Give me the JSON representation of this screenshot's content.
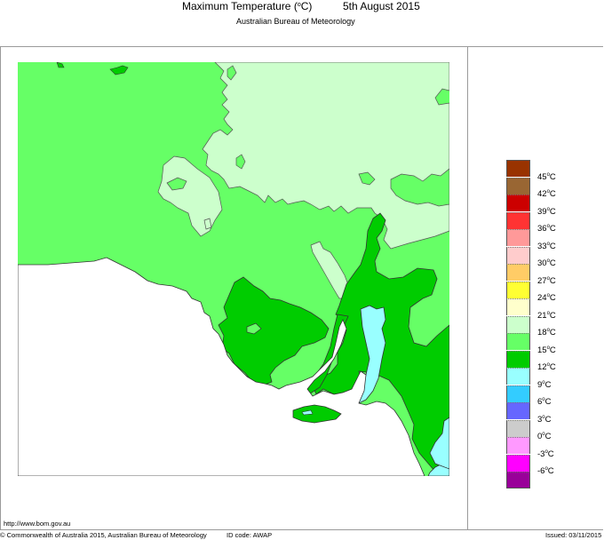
{
  "header": {
    "title": "Maximum Temperature (",
    "title_unit_sup": "o",
    "title_unit_suffix": "C)",
    "date": "5th August 2015",
    "subtitle": "Australian Bureau of Meteorology"
  },
  "map": {
    "region": "South Australia",
    "variable": "Maximum Temperature",
    "colors": {
      "t18_21": "#ccffcc",
      "t15_18": "#66ff66",
      "t12_15": "#00cc00",
      "t9_12": "#99ffff",
      "ocean": "#ffffff",
      "outline": "#333333"
    }
  },
  "legend": {
    "items": [
      {
        "label": "45",
        "color": "#993300"
      },
      {
        "label": "42",
        "color": "#996633"
      },
      {
        "label": "39",
        "color": "#cc0000"
      },
      {
        "label": "36",
        "color": "#ff3333"
      },
      {
        "label": "33",
        "color": "#ff9999"
      },
      {
        "label": "30",
        "color": "#ffcccc"
      },
      {
        "label": "27",
        "color": "#ffcc66"
      },
      {
        "label": "24",
        "color": "#ffff33"
      },
      {
        "label": "21",
        "color": "#ffffcc"
      },
      {
        "label": "18",
        "color": "#ccffcc"
      },
      {
        "label": "15",
        "color": "#66ff66"
      },
      {
        "label": "12",
        "color": "#00cc00"
      },
      {
        "label": "9",
        "color": "#99ffff"
      },
      {
        "label": "6",
        "color": "#33ccff"
      },
      {
        "label": "3",
        "color": "#6666ff"
      },
      {
        "label": "0",
        "color": "#cccccc"
      },
      {
        "label": "-3",
        "color": "#ff99ff"
      },
      {
        "label": "-6",
        "color": "#ff00ff"
      },
      {
        "label": "",
        "color": "#990099"
      }
    ],
    "unit_sup": "o",
    "unit": "C"
  },
  "footer": {
    "url": "http://www.bom.gov.au",
    "copyright": "© Commonwealth of Australia 2015, Australian Bureau of Meteorology",
    "id_code": "ID code: AWAP",
    "issued": "Issued: 03/11/2015"
  }
}
